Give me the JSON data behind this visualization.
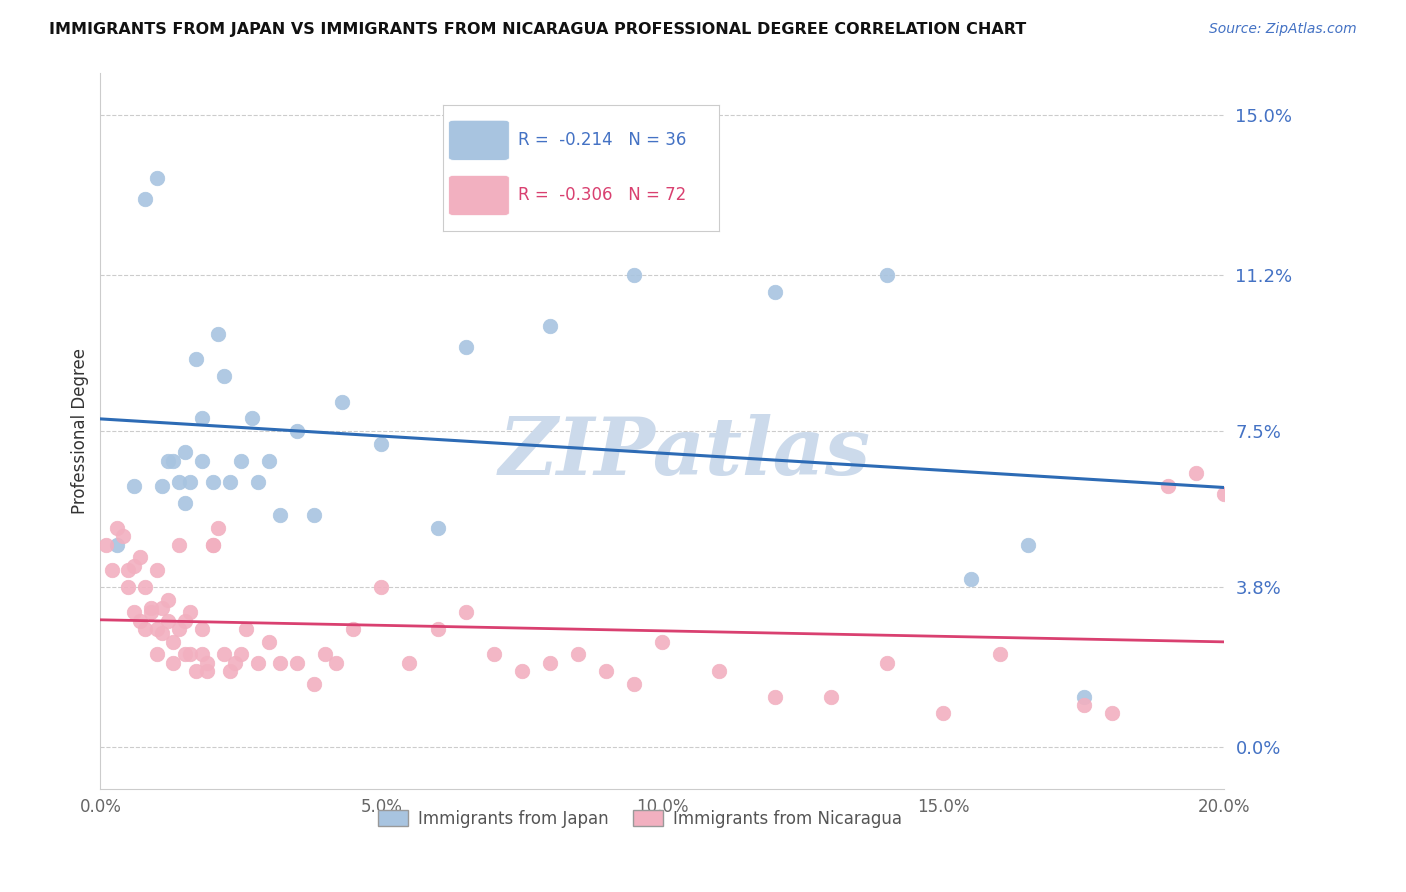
{
  "title": "IMMIGRANTS FROM JAPAN VS IMMIGRANTS FROM NICARAGUA PROFESSIONAL DEGREE CORRELATION CHART",
  "source": "Source: ZipAtlas.com",
  "xlabel_ticks": [
    "0.0%",
    "5.0%",
    "10.0%",
    "15.0%",
    "20.0%"
  ],
  "xlabel_tick_vals": [
    0.0,
    0.05,
    0.1,
    0.15,
    0.2
  ],
  "ylabel": "Professional Degree",
  "ylabel_ticks": [
    "0.0%",
    "3.8%",
    "7.5%",
    "11.2%",
    "15.0%"
  ],
  "ylabel_tick_vals": [
    0.0,
    0.038,
    0.075,
    0.112,
    0.15
  ],
  "xmin": 0.0,
  "xmax": 0.2,
  "ymin": -0.01,
  "ymax": 0.16,
  "japan_color": "#a8c4e0",
  "japan_edge_color": "#a8c4e0",
  "japan_line_color": "#2d6bb5",
  "nicaragua_color": "#f2b0c0",
  "nicaragua_edge_color": "#f2b0c0",
  "nicaragua_line_color": "#d94070",
  "japan_R": "-0.214",
  "japan_N": "36",
  "nicaragua_R": "-0.306",
  "nicaragua_N": "72",
  "watermark": "ZIPatlas",
  "watermark_color": "#ccdaeb",
  "legend_label_japan": "Immigrants from Japan",
  "legend_label_nicaragua": "Immigrants from Nicaragua",
  "japan_x": [
    0.003,
    0.006,
    0.008,
    0.01,
    0.011,
    0.012,
    0.013,
    0.014,
    0.015,
    0.015,
    0.016,
    0.017,
    0.018,
    0.018,
    0.02,
    0.021,
    0.022,
    0.023,
    0.025,
    0.027,
    0.028,
    0.03,
    0.032,
    0.035,
    0.038,
    0.043,
    0.05,
    0.06,
    0.065,
    0.08,
    0.095,
    0.12,
    0.14,
    0.155,
    0.165,
    0.175
  ],
  "japan_y": [
    0.048,
    0.062,
    0.13,
    0.135,
    0.062,
    0.068,
    0.068,
    0.063,
    0.07,
    0.058,
    0.063,
    0.092,
    0.078,
    0.068,
    0.063,
    0.098,
    0.088,
    0.063,
    0.068,
    0.078,
    0.063,
    0.068,
    0.055,
    0.075,
    0.055,
    0.082,
    0.072,
    0.052,
    0.095,
    0.1,
    0.112,
    0.108,
    0.112,
    0.04,
    0.048,
    0.012
  ],
  "nicaragua_x": [
    0.001,
    0.002,
    0.003,
    0.004,
    0.005,
    0.005,
    0.006,
    0.006,
    0.007,
    0.007,
    0.008,
    0.008,
    0.009,
    0.009,
    0.01,
    0.01,
    0.01,
    0.011,
    0.011,
    0.012,
    0.012,
    0.013,
    0.013,
    0.014,
    0.014,
    0.015,
    0.015,
    0.016,
    0.016,
    0.017,
    0.018,
    0.018,
    0.019,
    0.019,
    0.02,
    0.02,
    0.021,
    0.022,
    0.023,
    0.024,
    0.025,
    0.026,
    0.028,
    0.03,
    0.032,
    0.035,
    0.038,
    0.04,
    0.042,
    0.045,
    0.05,
    0.055,
    0.06,
    0.065,
    0.07,
    0.075,
    0.08,
    0.085,
    0.09,
    0.095,
    0.1,
    0.11,
    0.12,
    0.13,
    0.14,
    0.15,
    0.16,
    0.175,
    0.18,
    0.19,
    0.195,
    0.2
  ],
  "nicaragua_y": [
    0.048,
    0.042,
    0.052,
    0.05,
    0.042,
    0.038,
    0.043,
    0.032,
    0.045,
    0.03,
    0.038,
    0.028,
    0.033,
    0.032,
    0.042,
    0.028,
    0.022,
    0.033,
    0.027,
    0.035,
    0.03,
    0.025,
    0.02,
    0.028,
    0.048,
    0.03,
    0.022,
    0.022,
    0.032,
    0.018,
    0.028,
    0.022,
    0.018,
    0.02,
    0.048,
    0.048,
    0.052,
    0.022,
    0.018,
    0.02,
    0.022,
    0.028,
    0.02,
    0.025,
    0.02,
    0.02,
    0.015,
    0.022,
    0.02,
    0.028,
    0.038,
    0.02,
    0.028,
    0.032,
    0.022,
    0.018,
    0.02,
    0.022,
    0.018,
    0.015,
    0.025,
    0.018,
    0.012,
    0.012,
    0.02,
    0.008,
    0.022,
    0.01,
    0.008,
    0.062,
    0.065,
    0.06
  ]
}
